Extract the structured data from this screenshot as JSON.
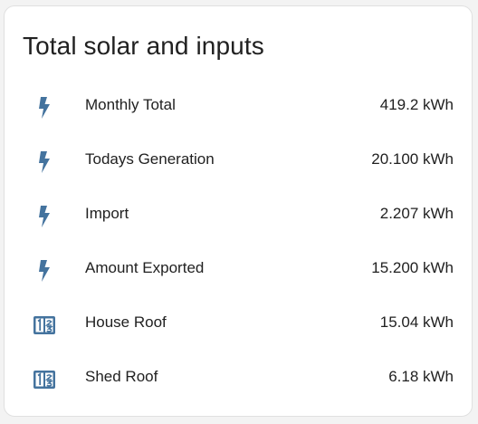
{
  "card": {
    "title": "Total solar and inputs",
    "icon_color": "#44739e",
    "rows": [
      {
        "icon": "flash-icon",
        "label": "Monthly Total",
        "value": "419.2 kWh"
      },
      {
        "icon": "flash-icon",
        "label": "Todays Generation",
        "value": "20.100 kWh"
      },
      {
        "icon": "flash-icon",
        "label": "Import",
        "value": "2.207 kWh"
      },
      {
        "icon": "flash-icon",
        "label": "Amount Exported",
        "value": "15.200 kWh"
      },
      {
        "icon": "numeric-box-icon",
        "label": "House Roof",
        "value": "15.04 kWh"
      },
      {
        "icon": "numeric-box-icon",
        "label": "Shed Roof",
        "value": "6.18 kWh"
      }
    ]
  }
}
